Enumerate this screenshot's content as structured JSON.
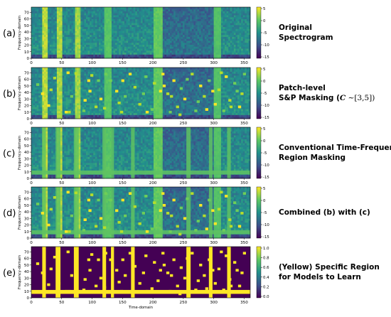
{
  "panels": [
    {
      "id": "a",
      "label": "(a)",
      "desc": [
        "Original",
        "Spectrogram"
      ],
      "cb_ticks": [
        "5",
        "0",
        "-5",
        "-10",
        "-15"
      ],
      "colorbar": "viridis",
      "layers": {
        "spec": "orig",
        "patches": false,
        "bands": false,
        "binary": false
      }
    },
    {
      "id": "b",
      "label": "(b)",
      "desc": [
        "Patch-level",
        "S&P Masking ("
      ],
      "desc_math": {
        "C": "C",
        "rest": "∼[3,5])"
      },
      "cb_ticks": [
        "5",
        "0",
        "-5",
        "-10",
        "-15"
      ],
      "colorbar": "viridis",
      "layers": {
        "spec": "orig",
        "patches": true,
        "bands": false,
        "binary": false
      }
    },
    {
      "id": "c",
      "label": "(c)",
      "desc": [
        "Conventional Time-Frequency",
        "Region Masking"
      ],
      "cb_ticks": [
        "5",
        "0",
        "-5",
        "-10",
        "-15"
      ],
      "colorbar": "viridis",
      "layers": {
        "spec": "orig",
        "patches": false,
        "bands": true,
        "binary": false
      }
    },
    {
      "id": "d",
      "label": "(d)",
      "desc": [
        "Combined (b) with (c)"
      ],
      "cb_ticks": [
        "5",
        "0",
        "-5",
        "-10",
        "-15"
      ],
      "colorbar": "viridis",
      "layers": {
        "spec": "orig",
        "patches": true,
        "bands": true,
        "binary": false
      }
    },
    {
      "id": "e",
      "label": "(e)",
      "desc": [
        "(Yellow) Specific Region",
        "for Models to Learn"
      ],
      "cb_ticks": [
        "1.0",
        "0.8",
        "0.6",
        "0.4",
        "0.2",
        "0.0"
      ],
      "colorbar": "binary",
      "layers": {
        "spec": "none",
        "patches": true,
        "bands": true,
        "binary": true
      }
    }
  ],
  "axes": {
    "ylabel": "Frequency-domain",
    "xlabel": "Time-domain",
    "x_ticks": [
      "0",
      "50",
      "100",
      "150",
      "200",
      "250",
      "300",
      "350"
    ],
    "x_values": [
      0,
      50,
      100,
      150,
      200,
      250,
      300,
      350
    ],
    "y_ticks": [
      "0",
      "10",
      "20",
      "30",
      "40",
      "50",
      "60",
      "70"
    ],
    "y_values": [
      0,
      10,
      20,
      30,
      40,
      50,
      60,
      70
    ],
    "x_range": [
      0,
      360
    ],
    "y_range": [
      0,
      78
    ]
  },
  "masking": {
    "time_bands": [
      [
        18,
        24
      ],
      [
        40,
        48
      ],
      [
        70,
        78
      ],
      [
        117,
        123
      ],
      [
        131,
        136
      ],
      [
        164,
        170
      ],
      [
        255,
        262
      ],
      [
        292,
        298
      ],
      [
        322,
        328
      ]
    ],
    "freq_bands": [
      [
        6,
        12
      ]
    ],
    "patches": [
      [
        58,
        72
      ],
      [
        71,
        71
      ],
      [
        8,
        54
      ],
      [
        16,
        40
      ],
      [
        30,
        46
      ],
      [
        43,
        24
      ],
      [
        55,
        12
      ],
      [
        60,
        12
      ],
      [
        84,
        14
      ],
      [
        92,
        60
      ],
      [
        97,
        68
      ],
      [
        108,
        60
      ],
      [
        112,
        32
      ],
      [
        118,
        18
      ],
      [
        128,
        60
      ],
      [
        138,
        44
      ],
      [
        146,
        12
      ],
      [
        152,
        36
      ],
      [
        160,
        70
      ],
      [
        176,
        24
      ],
      [
        182,
        40
      ],
      [
        188,
        12
      ],
      [
        200,
        56
      ],
      [
        206,
        28
      ],
      [
        214,
        70
      ],
      [
        222,
        40
      ],
      [
        226,
        12
      ],
      [
        232,
        60
      ],
      [
        238,
        20
      ],
      [
        244,
        48
      ],
      [
        250,
        32
      ],
      [
        262,
        70
      ],
      [
        268,
        14
      ],
      [
        276,
        52
      ],
      [
        282,
        36
      ],
      [
        290,
        60
      ],
      [
        300,
        24
      ],
      [
        306,
        46
      ],
      [
        314,
        14
      ],
      [
        318,
        66
      ],
      [
        324,
        30
      ],
      [
        332,
        56
      ],
      [
        340,
        20
      ],
      [
        344,
        40
      ],
      [
        348,
        70
      ],
      [
        94,
        44
      ],
      [
        104,
        20
      ],
      [
        120,
        70
      ],
      [
        148,
        60
      ],
      [
        168,
        50
      ],
      [
        196,
        16
      ],
      [
        216,
        52
      ],
      [
        228,
        36
      ],
      [
        254,
        62
      ],
      [
        286,
        16
      ],
      [
        310,
        72
      ],
      [
        336,
        44
      ],
      [
        26,
        22
      ],
      [
        36,
        64
      ],
      [
        64,
        36
      ],
      [
        86,
        30
      ],
      [
        142,
        26
      ],
      [
        186,
        66
      ],
      [
        210,
        44
      ],
      [
        242,
        8
      ],
      [
        272,
        28
      ],
      [
        296,
        44
      ],
      [
        326,
        20
      ]
    ]
  },
  "colors": {
    "background": "#ffffff",
    "viridis": [
      "#440154",
      "#3b528b",
      "#21918c",
      "#5ec962",
      "#fde725"
    ],
    "yellow": "#fde725",
    "purple": "#440154"
  }
}
